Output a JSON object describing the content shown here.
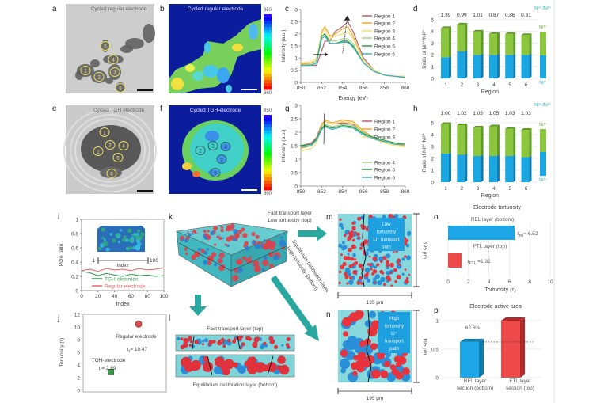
{
  "panel_labels": [
    "a",
    "b",
    "c",
    "d",
    "e",
    "f",
    "g",
    "h",
    "i",
    "j",
    "k",
    "l",
    "m",
    "n",
    "o",
    "p"
  ],
  "images": {
    "a_title": "Cycled regular electrode",
    "b_title": "Cycled regular electrode",
    "e_title": "Cycled TGH-electrode",
    "f_title": "Cycled TGH-electrode",
    "colorbar_top": "850",
    "colorbar_bottom": "860",
    "region_numbers": [
      "1",
      "2",
      "3",
      "4",
      "5",
      "6"
    ]
  },
  "k": {
    "top_label_1": "Fast transport layer",
    "top_label_2": "Low tortuosity (top)",
    "diag_label_1": "Equilibrium delithiation layer",
    "diag_label_2": "High tortuosity (bottom)"
  },
  "l": {
    "top": "Fast transport layer (top)",
    "bottom": "Equilibrium delithiation layer (bottom)"
  },
  "m": {
    "box_lines": [
      "Low",
      "tortuosity",
      "Li⁺ transport",
      "path"
    ],
    "scale_h": "195 μm",
    "scale_v": "195 μm"
  },
  "n": {
    "box_lines": [
      "High",
      "tortuosity",
      "Li⁺",
      "transport",
      "path"
    ],
    "scale_h": "195 μm",
    "scale_v": "195 μm"
  },
  "colors": {
    "ni3": "#8cc63f",
    "ni2": "#1aa6e0",
    "teal_arrow": "#2aa8a0",
    "rel_bar": "#1ea7e8",
    "ftl_bar": "#ef4a4a",
    "map_background": "#0b1c9c"
  },
  "chart_data": [
    {
      "panel": "c",
      "type": "line",
      "xlabel": "Energy (eV)",
      "ylabel": "Intensity (a.u.)",
      "xlim": [
        850,
        860
      ],
      "ylim": [
        0,
        3
      ],
      "xticks": [
        850,
        852,
        854,
        856,
        858,
        860
      ],
      "yticks": [
        0,
        0.5,
        1,
        1.5,
        2,
        2.5,
        3
      ],
      "legend": "top-right",
      "x": [
        850,
        851,
        851.5,
        852,
        852.3,
        852.8,
        853.3,
        854,
        854.5,
        855,
        856,
        857,
        858,
        859,
        860
      ],
      "series": [
        {
          "name": "Region 1",
          "color": "#b5636b",
          "values": [
            0.7,
            0.7,
            0.7,
            1.3,
            1.7,
            1.7,
            2.1,
            2.3,
            2.5,
            2.1,
            1.0,
            0.5,
            0.3,
            0.25,
            0.2
          ]
        },
        {
          "name": "Region 2",
          "color": "#f0a830",
          "values": [
            0.75,
            0.8,
            0.9,
            2.1,
            2.3,
            1.9,
            2.0,
            2.2,
            2.3,
            1.9,
            0.9,
            0.5,
            0.3,
            0.25,
            0.25
          ]
        },
        {
          "name": "Region 3",
          "color": "#efe070",
          "values": [
            0.8,
            0.85,
            1.0,
            2.0,
            2.2,
            1.8,
            1.9,
            2.0,
            2.1,
            1.8,
            0.9,
            0.5,
            0.3,
            0.25,
            0.25
          ]
        },
        {
          "name": "Region 4",
          "color": "#a9d18e",
          "values": [
            0.7,
            0.75,
            0.9,
            1.9,
            2.0,
            1.7,
            1.7,
            1.8,
            1.8,
            1.6,
            0.8,
            0.45,
            0.3,
            0.25,
            0.2
          ]
        },
        {
          "name": "Region 5",
          "color": "#2e9a48",
          "values": [
            0.7,
            0.7,
            0.8,
            1.9,
            2.0,
            1.6,
            1.6,
            1.7,
            1.7,
            1.5,
            0.8,
            0.45,
            0.3,
            0.25,
            0.2
          ]
        },
        {
          "name": "Region 6",
          "color": "#3fb0c0",
          "values": [
            0.7,
            0.7,
            0.8,
            1.8,
            1.9,
            1.6,
            1.6,
            1.65,
            1.65,
            1.45,
            0.8,
            0.45,
            0.3,
            0.25,
            0.2
          ]
        }
      ]
    },
    {
      "panel": "d",
      "type": "bar",
      "xlabel": "Region",
      "ylabel": "Ratio of Ni³⁺/Ni²⁺",
      "ylim": [
        0,
        5
      ],
      "yticks": [
        0,
        1,
        2,
        3,
        4,
        5
      ],
      "categories": [
        "1",
        "2",
        "3",
        "4",
        "5",
        "6"
      ],
      "ratio_labels": [
        "1.39",
        "0.99",
        "1.01",
        "0.87",
        "0.86",
        "0.81"
      ],
      "legend_title": "Ni³⁺/Ni²⁺",
      "series": [
        {
          "name": "Ni²⁺",
          "color": "#1aa6e0",
          "values": [
            1.8,
            2.3,
            2.0,
            2.0,
            2.0,
            2.0
          ]
        },
        {
          "name": "Ni³⁺",
          "color": "#8cc63f",
          "values": [
            2.5,
            2.3,
            2.0,
            1.8,
            1.8,
            1.7
          ]
        }
      ]
    },
    {
      "panel": "g",
      "type": "line",
      "xlabel": "Energy (eV)",
      "ylabel": "Intensity (a.u.)",
      "xlim": [
        850,
        860
      ],
      "ylim": [
        0,
        3
      ],
      "xticks": [
        850,
        852,
        854,
        856,
        858,
        860
      ],
      "yticks": [
        0,
        0.5,
        1,
        1.5,
        2,
        2.5,
        3
      ],
      "legend": "right",
      "x": [
        850,
        851,
        851.5,
        852,
        852.3,
        853,
        854,
        855,
        856,
        857,
        858,
        859,
        860
      ],
      "series": [
        {
          "name": "Region 1",
          "color": "#b5636b",
          "values": [
            1.5,
            1.6,
            1.8,
            2.3,
            2.4,
            2.3,
            2.35,
            2.3,
            2.0,
            1.8,
            1.7,
            1.6,
            1.6
          ]
        },
        {
          "name": "Region 2",
          "color": "#f0a830",
          "values": [
            1.4,
            1.5,
            1.7,
            2.3,
            2.45,
            2.35,
            2.45,
            2.4,
            2.05,
            1.8,
            1.65,
            1.55,
            1.5
          ]
        },
        {
          "name": "Region 3",
          "color": "#efe070",
          "values": [
            1.3,
            1.4,
            1.6,
            2.2,
            2.4,
            2.3,
            2.4,
            2.35,
            2.0,
            1.75,
            1.6,
            1.5,
            1.45
          ]
        },
        {
          "name": "Region 4",
          "color": "#a9d18e",
          "values": [
            1.5,
            1.55,
            1.75,
            2.2,
            2.3,
            2.2,
            2.3,
            2.25,
            2.0,
            1.8,
            1.7,
            1.6,
            1.6
          ]
        },
        {
          "name": "Region 5",
          "color": "#2e9a48",
          "values": [
            1.5,
            1.55,
            1.75,
            2.15,
            2.25,
            2.15,
            2.25,
            2.2,
            1.95,
            1.8,
            1.7,
            1.6,
            1.55
          ]
        },
        {
          "name": "Region 6",
          "color": "#3fb0c0",
          "values": [
            1.45,
            1.5,
            1.7,
            2.1,
            2.2,
            2.1,
            2.2,
            2.15,
            1.9,
            1.75,
            1.65,
            1.55,
            1.55
          ]
        }
      ]
    },
    {
      "panel": "h",
      "type": "bar",
      "xlabel": "Region",
      "ylabel": "Ratio of Ni³⁺/Ni²⁺",
      "ylim": [
        0,
        5
      ],
      "yticks": [
        0,
        1,
        2,
        3,
        4,
        5
      ],
      "categories": [
        "1",
        "2",
        "3",
        "4",
        "5",
        "6"
      ],
      "ratio_labels": [
        "1.00",
        "1.02",
        "1.05",
        "1.05",
        "1.03",
        "1.03"
      ],
      "legend_title": "Ni³⁺/Ni²⁺",
      "series": [
        {
          "name": "Ni²⁺",
          "color": "#1aa6e0",
          "values": [
            2.4,
            2.3,
            2.2,
            2.2,
            2.2,
            2.1
          ]
        },
        {
          "name": "Ni³⁺",
          "color": "#8cc63f",
          "values": [
            2.5,
            2.5,
            2.4,
            2.5,
            2.3,
            2.3
          ]
        }
      ]
    },
    {
      "panel": "i",
      "type": "line",
      "xlabel": "Index",
      "ylabel": "Pore ratio",
      "xlim": [
        0,
        100
      ],
      "ylim": [
        0,
        1
      ],
      "xticks": [
        0,
        20,
        40,
        60,
        80,
        100
      ],
      "yticks": [
        0,
        0.2,
        0.4,
        0.6,
        0.8,
        1
      ],
      "inset_labels": {
        "start": "1",
        "end": "100",
        "axis": "Index"
      },
      "legend": "bottom",
      "x": [
        0,
        10,
        20,
        30,
        40,
        50,
        60,
        70,
        80,
        90,
        100
      ],
      "series": [
        {
          "name": "TGH-electrode",
          "color": "#2e9a48",
          "values": [
            0.27,
            0.25,
            0.21,
            0.24,
            0.22,
            0.2,
            0.23,
            0.21,
            0.22,
            0.2,
            0.21
          ]
        },
        {
          "name": "Regular electrode",
          "color": "#e06666",
          "values": [
            0.28,
            0.3,
            0.27,
            0.31,
            0.29,
            0.3,
            0.28,
            0.31,
            0.29,
            0.3,
            0.32
          ]
        }
      ]
    },
    {
      "panel": "j",
      "type": "scatter",
      "ylabel": "Tortuosity (τ)",
      "ylim": [
        0,
        12
      ],
      "yticks": [
        0,
        2,
        4,
        6,
        8,
        10,
        12
      ],
      "xlim": [
        0,
        3
      ],
      "points": [
        {
          "name": "Regular electrode",
          "x": 2,
          "y": 10.47,
          "color": "#e05050",
          "marker": "circle",
          "symbol": "τ",
          "sub": "r",
          "value_text": "= 10.47"
        },
        {
          "name": "TGH-electrode",
          "x": 1,
          "y": 2.89,
          "color": "#3a9a4a",
          "marker": "square",
          "symbol": "τ",
          "sub": "r",
          "value_text": "= 2.89"
        }
      ]
    },
    {
      "panel": "o",
      "type": "bar",
      "orientation": "horizontal",
      "title": "Electrode tortuosity",
      "xlabel": "Tortuosity (τ)",
      "xlim": [
        0,
        10
      ],
      "xticks": [
        0,
        2,
        4,
        6,
        8,
        10
      ],
      "grid": true,
      "categories": [
        "REL layer (bottom)",
        "FTL layer (top)"
      ],
      "values": [
        6.52,
        1.32
      ],
      "colors": [
        "#1ea7e8",
        "#ef4a4a"
      ],
      "value_labels": [
        {
          "symbol": "τ",
          "sub": "rel",
          "text": "= 6.52"
        },
        {
          "symbol": "τ",
          "sub": "FTL",
          "text": " =1.32"
        }
      ]
    },
    {
      "panel": "p",
      "type": "bar",
      "title": "Electrode active area",
      "ylim": [
        0,
        1
      ],
      "yticks": [
        0,
        0.5,
        1
      ],
      "categories": [
        [
          "REL layer",
          "section (bottom)"
        ],
        [
          "FTL layer",
          "section (top)"
        ]
      ],
      "values": [
        0.626,
        1.0
      ],
      "colors": [
        "#1ea7e8",
        "#ef4a4a"
      ],
      "annotation": "62.6%"
    }
  ]
}
